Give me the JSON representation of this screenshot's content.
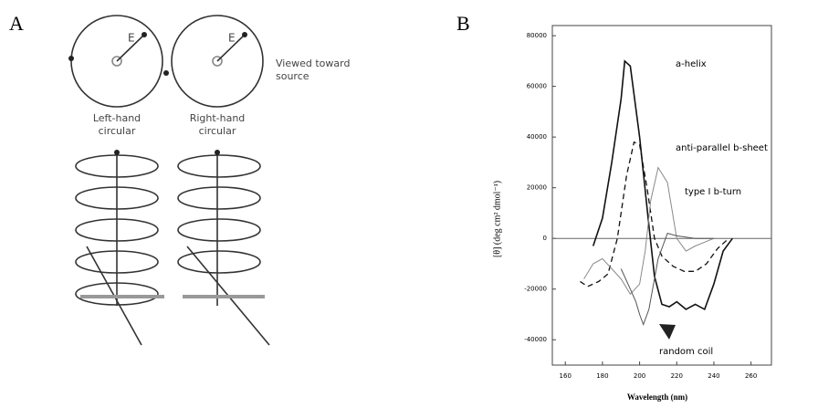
{
  "panel_a": {
    "label": "A",
    "vector_left": "E",
    "vector_right": "E",
    "viewed": [
      "Viewed toward",
      "source"
    ],
    "left_caption": [
      "Left-hand",
      "circular"
    ],
    "right_caption": [
      "Right-hand",
      "circular"
    ]
  },
  "chart_data": {
    "type": "line",
    "label": "B",
    "x_label": "Wavelength (nm)",
    "y_label": "[θ] (deg cm² dmol⁻¹)",
    "xlim": [
      153,
      271
    ],
    "ylim": [
      -50000,
      84000
    ],
    "xticks": [
      160,
      180,
      200,
      220,
      240,
      260
    ],
    "yticks": [
      -40000,
      -20000,
      0,
      20000,
      40000,
      60000,
      80000
    ],
    "zero_line": true,
    "annotations": [
      "a-helix",
      "anti-parallel b-sheet",
      "type I b-turn",
      "random coil"
    ],
    "series": [
      {
        "color": "#111111",
        "style": "solid",
        "width": 1.6,
        "x": [
          175,
          180,
          185,
          190,
          192,
          195,
          200,
          205,
          208,
          212,
          216,
          220,
          225,
          230,
          235,
          240,
          245,
          250
        ],
        "values": [
          -3000,
          8000,
          30000,
          55000,
          70000,
          68000,
          40000,
          5000,
          -15000,
          -26000,
          -27000,
          -25000,
          -28000,
          -26000,
          -28000,
          -18000,
          -5000,
          0
        ]
      },
      {
        "color": "#111111",
        "style": "dashed",
        "width": 1.3,
        "x": [
          168,
          172,
          178,
          183,
          188,
          193,
          197,
          200,
          204,
          208,
          212,
          218,
          224,
          230,
          236,
          242,
          248
        ],
        "values": [
          -17000,
          -19000,
          -17000,
          -14000,
          0,
          25000,
          38000,
          37000,
          20000,
          0,
          -7000,
          -11000,
          -13000,
          -13000,
          -10000,
          -4000,
          0
        ]
      },
      {
        "color": "#8a8a8a",
        "style": "solid",
        "width": 1,
        "x": [
          170,
          175,
          180,
          185,
          190,
          195,
          200,
          203,
          206,
          210,
          215,
          220,
          225,
          230,
          240
        ],
        "values": [
          -16000,
          -10000,
          -8000,
          -12000,
          -16000,
          -22000,
          -18000,
          -5000,
          15000,
          28000,
          22000,
          0,
          -5000,
          -3000,
          0
        ]
      },
      {
        "color": "#555555",
        "style": "solid",
        "width": 1,
        "x": [
          190,
          195,
          198,
          200,
          202,
          205,
          210,
          215,
          220,
          230,
          240
        ],
        "values": [
          -12000,
          -20000,
          -25000,
          -30000,
          -34000,
          -28000,
          -8000,
          2000,
          1000,
          0,
          0
        ]
      }
    ]
  }
}
